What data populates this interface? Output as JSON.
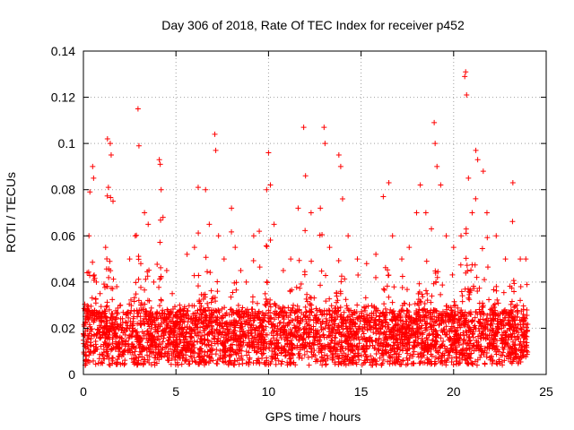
{
  "chart_data": {
    "type": "scatter",
    "title": "Day 306 of 2018, Rate Of TEC Index for receiver p452",
    "xlabel": "GPS time / hours",
    "ylabel": "ROTI / TECUs",
    "xlim": [
      0,
      25
    ],
    "ylim": [
      0,
      0.14
    ],
    "xticks": [
      0,
      5,
      10,
      15,
      20,
      25
    ],
    "xtick_labels": [
      "0",
      "5",
      "10",
      "15",
      "20",
      "25"
    ],
    "yticks": [
      0,
      0.02,
      0.04,
      0.06,
      0.08,
      0.1,
      0.12,
      0.14
    ],
    "ytick_labels": [
      "0",
      "0.02",
      "0.04",
      "0.06",
      "0.08",
      "0.1",
      "0.12",
      "0.14"
    ],
    "grid": true,
    "marker": "plus",
    "color": "#ff0000",
    "series": [
      {
        "name": "ROTI",
        "points": [
          [
            0.1,
            0.028
          ],
          [
            0.2,
            0.044
          ],
          [
            0.3,
            0.06
          ],
          [
            0.35,
            0.079
          ],
          [
            0.5,
            0.09
          ],
          [
            0.55,
            0.085
          ],
          [
            0.7,
            0.04
          ],
          [
            0.9,
            0.035
          ],
          [
            1.2,
            0.055
          ],
          [
            1.3,
            0.102
          ],
          [
            1.35,
            0.081
          ],
          [
            1.45,
            0.1
          ],
          [
            1.5,
            0.095
          ],
          [
            1.6,
            0.075
          ],
          [
            1.8,
            0.038
          ],
          [
            2.0,
            0.03
          ],
          [
            2.5,
            0.05
          ],
          [
            2.8,
            0.06
          ],
          [
            2.95,
            0.115
          ],
          [
            3.0,
            0.099
          ],
          [
            3.1,
            0.048
          ],
          [
            3.3,
            0.07
          ],
          [
            3.5,
            0.065
          ],
          [
            3.8,
            0.04
          ],
          [
            4.1,
            0.093
          ],
          [
            4.15,
            0.091
          ],
          [
            4.2,
            0.08
          ],
          [
            4.3,
            0.068
          ],
          [
            4.5,
            0.045
          ],
          [
            4.8,
            0.035
          ],
          [
            5.2,
            0.03
          ],
          [
            5.6,
            0.052
          ],
          [
            6.0,
            0.055
          ],
          [
            6.2,
            0.081
          ],
          [
            6.6,
            0.08
          ],
          [
            6.8,
            0.065
          ],
          [
            7.1,
            0.104
          ],
          [
            7.15,
            0.097
          ],
          [
            7.3,
            0.06
          ],
          [
            7.6,
            0.05
          ],
          [
            8.0,
            0.072
          ],
          [
            8.2,
            0.055
          ],
          [
            8.5,
            0.045
          ],
          [
            8.8,
            0.04
          ],
          [
            9.2,
            0.06
          ],
          [
            9.5,
            0.062
          ],
          [
            9.9,
            0.08
          ],
          [
            10.0,
            0.096
          ],
          [
            10.1,
            0.082
          ],
          [
            10.3,
            0.065
          ],
          [
            10.8,
            0.045
          ],
          [
            11.2,
            0.05
          ],
          [
            11.6,
            0.072
          ],
          [
            11.9,
            0.107
          ],
          [
            12.0,
            0.086
          ],
          [
            12.3,
            0.07
          ],
          [
            12.8,
            0.072
          ],
          [
            13.0,
            0.107
          ],
          [
            13.05,
            0.1
          ],
          [
            13.3,
            0.055
          ],
          [
            13.8,
            0.095
          ],
          [
            13.9,
            0.09
          ],
          [
            14.0,
            0.076
          ],
          [
            14.3,
            0.06
          ],
          [
            14.8,
            0.05
          ],
          [
            15.3,
            0.048
          ],
          [
            15.8,
            0.052
          ],
          [
            16.2,
            0.077
          ],
          [
            16.5,
            0.083
          ],
          [
            16.7,
            0.06
          ],
          [
            17.2,
            0.05
          ],
          [
            17.6,
            0.055
          ],
          [
            18.0,
            0.07
          ],
          [
            18.2,
            0.082
          ],
          [
            18.5,
            0.07
          ],
          [
            18.8,
            0.063
          ],
          [
            18.95,
            0.109
          ],
          [
            19.0,
            0.1
          ],
          [
            19.1,
            0.09
          ],
          [
            19.3,
            0.082
          ],
          [
            19.6,
            0.06
          ],
          [
            20.0,
            0.055
          ],
          [
            20.4,
            0.06
          ],
          [
            20.6,
            0.129
          ],
          [
            20.65,
            0.131
          ],
          [
            20.7,
            0.121
          ],
          [
            20.8,
            0.085
          ],
          [
            21.0,
            0.07
          ],
          [
            21.2,
            0.097
          ],
          [
            21.3,
            0.093
          ],
          [
            21.6,
            0.088
          ],
          [
            21.8,
            0.07
          ],
          [
            22.3,
            0.06
          ],
          [
            22.8,
            0.05
          ],
          [
            23.2,
            0.083
          ],
          [
            23.6,
            0.05
          ],
          [
            23.9,
            0.05
          ]
        ]
      }
    ]
  }
}
